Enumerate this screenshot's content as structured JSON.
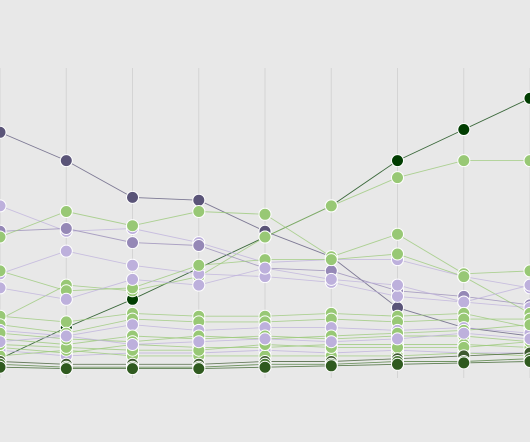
{
  "chart_data": {
    "type": "line",
    "title": "",
    "xlabel": "",
    "ylabel": "",
    "grid": true,
    "x": [
      0,
      1,
      2,
      3,
      4,
      5,
      6,
      7,
      8
    ],
    "ylim": [
      0,
      100
    ],
    "series": [
      {
        "color": "#5a5478",
        "values": [
          84,
          74,
          61,
          60,
          49,
          40,
          22,
          15,
          12
        ]
      },
      {
        "color": "#013d01",
        "values": [
          4,
          15,
          25,
          36,
          47,
          58,
          74,
          85,
          96
        ]
      },
      {
        "color": "#98c875",
        "values": [
          18,
          30,
          28,
          33,
          47,
          58,
          68,
          74,
          74
        ]
      },
      {
        "color": "#bdb0dc",
        "values": [
          58,
          49,
          50,
          45,
          38,
          39,
          39,
          33,
          29
        ]
      },
      {
        "color": "#9588b6",
        "values": [
          49,
          50,
          45,
          44,
          36,
          35,
          28,
          26,
          23
        ]
      },
      {
        "color": "#98c875",
        "values": [
          47,
          56,
          51,
          56,
          55,
          40,
          48,
          34,
          35
        ]
      },
      {
        "color": "#bdb0dc",
        "values": [
          34,
          42,
          37,
          34,
          33,
          31,
          26,
          24,
          22
        ]
      },
      {
        "color": "#98c875",
        "values": [
          35,
          28,
          29,
          37,
          39,
          39,
          41,
          33,
          20
        ]
      },
      {
        "color": "#bdb0dc",
        "values": [
          29,
          25,
          32,
          30,
          36,
          32,
          30,
          24,
          30
        ]
      },
      {
        "color": "#98c875",
        "values": [
          19,
          17,
          20,
          19,
          19,
          20,
          19,
          20,
          15
        ]
      },
      {
        "color": "#98c875",
        "values": [
          16,
          13,
          18,
          17,
          17,
          18,
          17,
          18,
          18
        ]
      },
      {
        "color": "#bdb0dc",
        "values": [
          14,
          12,
          16,
          14,
          15,
          15,
          14,
          15,
          13
        ]
      },
      {
        "color": "#98c875",
        "values": [
          11,
          9,
          12,
          11,
          12,
          11,
          12,
          12,
          10
        ]
      },
      {
        "color": "#98c875",
        "values": [
          8,
          6,
          9,
          8,
          8,
          9,
          9,
          9,
          8
        ]
      },
      {
        "color": "#bdb0dc",
        "values": [
          7,
          5,
          6,
          6,
          7,
          6,
          7,
          6,
          6
        ]
      },
      {
        "color": "#98c875",
        "values": [
          5,
          7,
          5,
          5,
          5,
          5,
          5,
          6,
          5
        ]
      },
      {
        "color": "#98c875",
        "values": [
          9,
          8,
          7,
          7,
          9,
          8,
          8,
          8,
          10
        ]
      },
      {
        "color": "#3e5a2f",
        "values": [
          3,
          2,
          2,
          2,
          3,
          3,
          4,
          5,
          6
        ]
      },
      {
        "color": "#4a7a36",
        "values": [
          2,
          1,
          1,
          1,
          2,
          2,
          3,
          3,
          4
        ]
      },
      {
        "color": "#2f5a1f",
        "values": [
          1,
          0.5,
          0.5,
          0.5,
          1,
          1.5,
          2,
          2.5,
          3
        ]
      },
      {
        "color": "#98c875",
        "values": [
          13,
          11,
          10,
          12,
          11,
          12,
          13,
          14,
          16
        ]
      },
      {
        "color": "#bdb0dc",
        "values": [
          10,
          12,
          9,
          10,
          11,
          10,
          11,
          13,
          11
        ]
      }
    ]
  }
}
